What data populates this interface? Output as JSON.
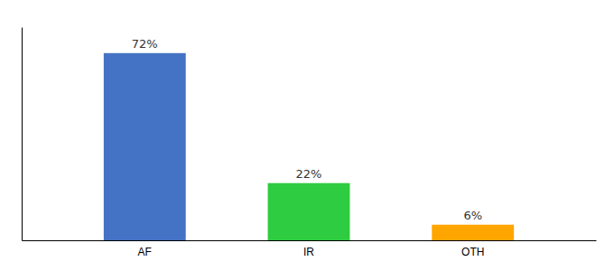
{
  "chart_data": {
    "type": "bar",
    "categories": [
      "AF",
      "IR",
      "OTH"
    ],
    "values": [
      72,
      22,
      6
    ],
    "value_labels": [
      "72%",
      "22%",
      "6%"
    ],
    "colors": [
      "#4472C4",
      "#2ECC40",
      "#FFA500"
    ],
    "ylim": [
      0,
      82
    ],
    "grid": false,
    "data_labels": true,
    "tick_labels": "x"
  }
}
